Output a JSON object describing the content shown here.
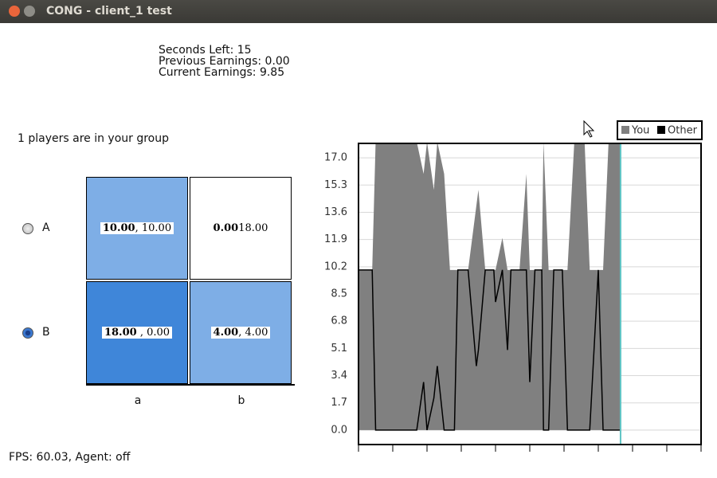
{
  "window": {
    "title": "CONG - client_1 test"
  },
  "status": {
    "seconds_left": "Seconds Left: 15",
    "previous_earnings": "Previous Earnings: 0.00",
    "current_earnings": "Current Earnings: 9.85"
  },
  "group_text": "1 players are in your group",
  "rows": [
    {
      "label": "A"
    },
    {
      "label": "B"
    }
  ],
  "selected_row": 1,
  "columns": [
    {
      "label": "a"
    },
    {
      "label": "b"
    }
  ],
  "matrix": [
    [
      {
        "bold": "10.00",
        "rest": ", 10.00",
        "color": "#7eaee6"
      },
      {
        "bold": "0.00",
        "rest": "18.00",
        "color": "#ffffff"
      }
    ],
    [
      {
        "bold": "18.00",
        "rest": " , 0.00",
        "color": "#3f86d9"
      },
      {
        "bold": "4.00",
        "rest": ", 4.00",
        "color": "#7eaee6"
      }
    ]
  ],
  "footer": "FPS: 60.03, Agent: off",
  "chart_data": {
    "type": "area",
    "x": [
      0,
      4,
      5,
      6,
      17,
      19,
      20,
      22,
      23,
      25,
      26.7,
      28,
      29,
      32,
      34.4,
      35,
      37,
      39.5,
      40,
      42,
      43.5,
      44.5,
      47,
      49,
      50,
      51.5,
      53.5,
      54,
      55.5,
      57,
      59.5,
      61,
      63,
      66,
      67.5,
      70,
      71.4,
      73,
      76.5
    ],
    "series": [
      {
        "name": "You",
        "color": "#808080",
        "values": [
          10,
          10,
          18,
          18,
          18,
          16,
          18,
          15,
          18,
          16,
          10,
          10,
          10,
          10,
          14,
          15,
          10,
          10,
          10,
          12,
          10,
          10,
          10,
          16,
          10,
          10,
          10,
          18,
          10,
          10,
          10,
          10,
          18,
          18,
          10,
          10,
          10,
          18,
          18
        ]
      },
      {
        "name": "Other",
        "color": "#000000",
        "values": [
          10,
          10,
          0,
          0,
          0,
          3,
          0,
          2,
          4,
          0,
          0,
          0,
          10,
          10,
          4,
          5,
          10,
          10,
          8,
          10,
          5,
          10,
          10,
          10,
          3,
          10,
          10,
          0,
          0,
          10,
          10,
          0,
          0,
          0,
          0,
          10,
          0,
          0,
          0
        ]
      }
    ],
    "xlim": [
      0,
      100
    ],
    "xticks": [
      0,
      10,
      20,
      30,
      40,
      50,
      60,
      70,
      80,
      90,
      100
    ],
    "ylim": [
      -0.9,
      17.9
    ],
    "yticks": [
      {
        "value": 0,
        "label": "0.0"
      },
      {
        "value": 1.7,
        "label": "1.7"
      },
      {
        "value": 3.4,
        "label": "3.4"
      },
      {
        "value": 5.1,
        "label": "5.1"
      },
      {
        "value": 6.8,
        "label": "6.8"
      },
      {
        "value": 8.5,
        "label": "8.5"
      },
      {
        "value": 10.2,
        "label": "10.2"
      },
      {
        "value": 11.9,
        "label": "11.9"
      },
      {
        "value": 13.6,
        "label": "13.6"
      },
      {
        "value": 15.3,
        "label": "15.3"
      },
      {
        "value": 17,
        "label": "17.0"
      }
    ],
    "marker_x": 76.5,
    "marker_color": "#5fc4c4",
    "grid": true
  }
}
